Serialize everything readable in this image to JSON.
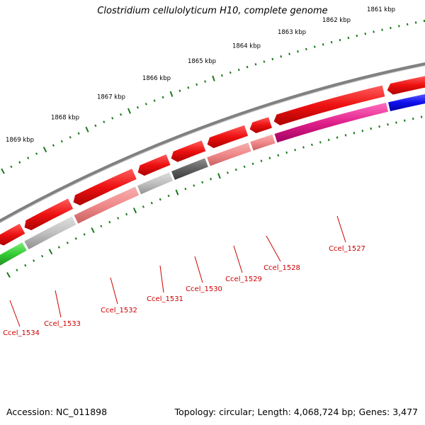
{
  "title": "Clostridium cellulolyticum H10, complete genome",
  "footer": {
    "accession": "Accession: NC_011898",
    "topology": "Topology: circular;",
    "length": "Length: 4,068,724 bp;",
    "genes": "Genes: 3,477"
  },
  "ruler": {
    "color": "#1a7a1a",
    "labels": [
      "1861 kbp",
      "1862 kbp",
      "1863 kbp",
      "1864 kbp",
      "1865 kbp",
      "1866 kbp",
      "1867 kbp",
      "1868 kbp",
      "1869 kbp"
    ]
  },
  "gene_labels": [
    "Ccel_1527",
    "Ccel_1528",
    "Ccel_1529",
    "Ccel_1530",
    "Ccel_1531",
    "Ccel_1532",
    "Ccel_1533",
    "Ccel_1534"
  ],
  "colors": {
    "backbone": "#808080",
    "gene_strand": "#ee1111",
    "label": "#cc0000",
    "pink_light": "#f08a8a",
    "magenta": "#e0208a",
    "blue": "#1010ee",
    "green": "#33cc33",
    "grey_light": "#c0c0c0",
    "grey_dark": "#606060"
  }
}
